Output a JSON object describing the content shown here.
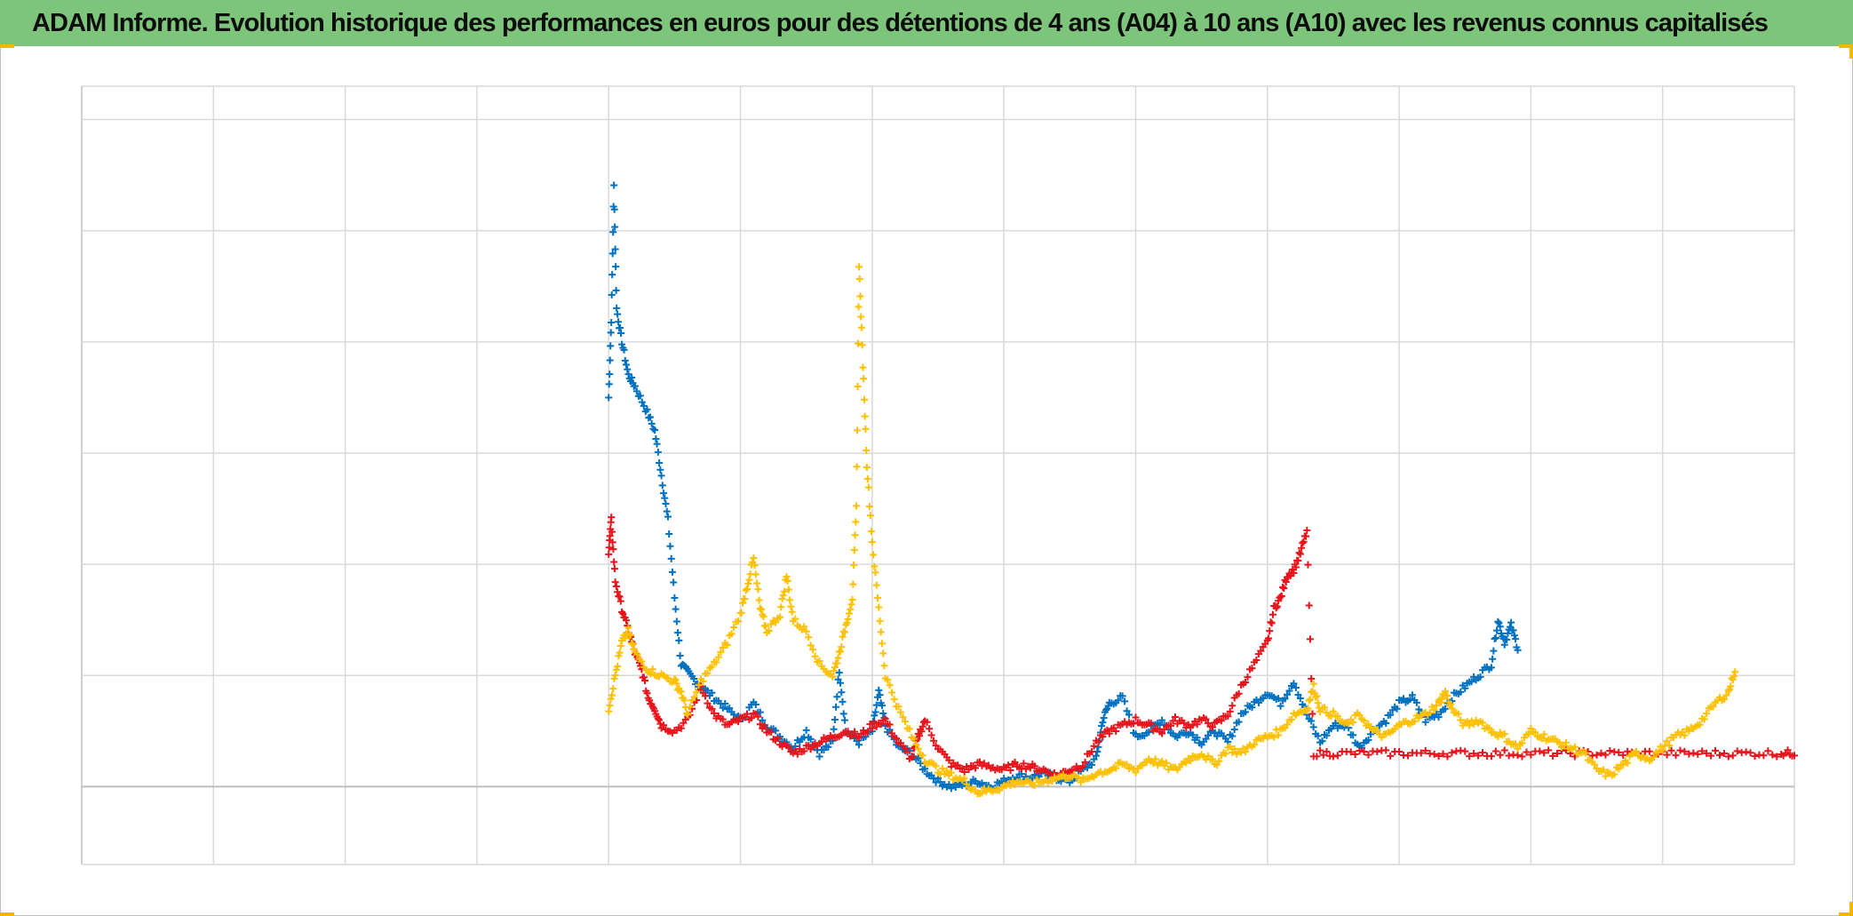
{
  "title": "ADAM Informe. Evolution historique des performances en euros pour des détentions de 4 ans (A04) à 10 ans (A10) avec les revenus connus capitalisés",
  "colors": {
    "header_bg": "#7dc57a",
    "corner_accent": "#f2b800",
    "grid": "#d9d9d9",
    "axis": "#bfbfbf"
  },
  "chart_data": {
    "type": "scatter",
    "marker": "plus",
    "title": "ADAM Informe. Evolution historique des performances en euros pour des détentions de 4 ans (A04) à 10 ans (A10) avec les revenus connus capitalisés",
    "xlabel": "",
    "ylabel": "",
    "tick_labels_visible": false,
    "legend_visible": false,
    "grid": true,
    "x_range": [
      0,
      13
    ],
    "y_range": [
      -0.7,
      6.3
    ],
    "x_gridlines": 13,
    "y_gridlines": [
      0,
      1,
      2,
      3,
      4,
      5,
      6
    ],
    "series": [
      {
        "color": "#0070c0",
        "points": [
          [
            4.0,
            3.5
          ],
          [
            4.02,
            4.2
          ],
          [
            4.04,
            5.4
          ],
          [
            4.06,
            4.3
          ],
          [
            4.1,
            4.0
          ],
          [
            4.15,
            3.7
          ],
          [
            4.2,
            3.6
          ],
          [
            4.28,
            3.4
          ],
          [
            4.35,
            3.2
          ],
          [
            4.4,
            2.8
          ],
          [
            4.45,
            2.4
          ],
          [
            4.5,
            1.7
          ],
          [
            4.55,
            1.1
          ],
          [
            4.62,
            1.0
          ],
          [
            4.7,
            0.9
          ],
          [
            4.8,
            0.8
          ],
          [
            4.9,
            0.7
          ],
          [
            5.0,
            0.6
          ],
          [
            5.1,
            0.75
          ],
          [
            5.2,
            0.55
          ],
          [
            5.3,
            0.45
          ],
          [
            5.4,
            0.35
          ],
          [
            5.5,
            0.5
          ],
          [
            5.6,
            0.3
          ],
          [
            5.7,
            0.4
          ],
          [
            5.75,
            1.05
          ],
          [
            5.8,
            0.5
          ],
          [
            5.9,
            0.4
          ],
          [
            6.0,
            0.5
          ],
          [
            6.05,
            0.85
          ],
          [
            6.1,
            0.55
          ],
          [
            6.2,
            0.35
          ],
          [
            6.3,
            0.3
          ],
          [
            6.4,
            0.15
          ],
          [
            6.5,
            0.05
          ],
          [
            6.6,
            0.0
          ],
          [
            6.7,
            0.02
          ],
          [
            6.8,
            0.05
          ],
          [
            6.9,
            0.0
          ],
          [
            7.0,
            0.05
          ],
          [
            7.1,
            0.1
          ],
          [
            7.2,
            0.08
          ],
          [
            7.3,
            0.12
          ],
          [
            7.4,
            0.08
          ],
          [
            7.5,
            0.05
          ],
          [
            7.6,
            0.15
          ],
          [
            7.7,
            0.25
          ],
          [
            7.75,
            0.6
          ],
          [
            7.8,
            0.75
          ],
          [
            7.9,
            0.8
          ],
          [
            8.0,
            0.45
          ],
          [
            8.1,
            0.5
          ],
          [
            8.2,
            0.6
          ],
          [
            8.3,
            0.45
          ],
          [
            8.4,
            0.5
          ],
          [
            8.5,
            0.4
          ],
          [
            8.6,
            0.5
          ],
          [
            8.7,
            0.4
          ],
          [
            8.8,
            0.65
          ],
          [
            8.9,
            0.75
          ],
          [
            9.0,
            0.85
          ],
          [
            9.1,
            0.75
          ],
          [
            9.2,
            0.95
          ],
          [
            9.3,
            0.65
          ],
          [
            9.4,
            0.4
          ],
          [
            9.5,
            0.55
          ],
          [
            9.6,
            0.55
          ],
          [
            9.7,
            0.35
          ],
          [
            9.8,
            0.5
          ],
          [
            9.9,
            0.6
          ],
          [
            10.0,
            0.75
          ],
          [
            10.1,
            0.8
          ],
          [
            10.2,
            0.6
          ],
          [
            10.3,
            0.65
          ],
          [
            10.4,
            0.8
          ],
          [
            10.5,
            0.9
          ],
          [
            10.6,
            1.0
          ],
          [
            10.7,
            1.1
          ],
          [
            10.75,
            1.5
          ],
          [
            10.8,
            1.3
          ],
          [
            10.85,
            1.45
          ],
          [
            10.9,
            1.25
          ]
        ]
      },
      {
        "color": "#e8141b",
        "points": [
          [
            4.0,
            2.1
          ],
          [
            4.02,
            2.4
          ],
          [
            4.05,
            1.85
          ],
          [
            4.1,
            1.6
          ],
          [
            4.15,
            1.4
          ],
          [
            4.2,
            1.2
          ],
          [
            4.25,
            1.05
          ],
          [
            4.3,
            0.8
          ],
          [
            4.35,
            0.7
          ],
          [
            4.4,
            0.55
          ],
          [
            4.5,
            0.5
          ],
          [
            4.6,
            0.6
          ],
          [
            4.7,
            0.9
          ],
          [
            4.8,
            0.65
          ],
          [
            4.9,
            0.55
          ],
          [
            5.0,
            0.6
          ],
          [
            5.1,
            0.65
          ],
          [
            5.2,
            0.5
          ],
          [
            5.3,
            0.4
          ],
          [
            5.4,
            0.3
          ],
          [
            5.5,
            0.35
          ],
          [
            5.6,
            0.4
          ],
          [
            5.7,
            0.45
          ],
          [
            5.8,
            0.5
          ],
          [
            5.9,
            0.45
          ],
          [
            6.0,
            0.55
          ],
          [
            6.1,
            0.6
          ],
          [
            6.2,
            0.4
          ],
          [
            6.3,
            0.25
          ],
          [
            6.35,
            0.45
          ],
          [
            6.4,
            0.6
          ],
          [
            6.5,
            0.35
          ],
          [
            6.6,
            0.2
          ],
          [
            6.7,
            0.15
          ],
          [
            6.8,
            0.2
          ],
          [
            6.9,
            0.18
          ],
          [
            7.0,
            0.15
          ],
          [
            7.1,
            0.2
          ],
          [
            7.2,
            0.18
          ],
          [
            7.3,
            0.15
          ],
          [
            7.4,
            0.1
          ],
          [
            7.5,
            0.15
          ],
          [
            7.6,
            0.2
          ],
          [
            7.7,
            0.4
          ],
          [
            7.8,
            0.5
          ],
          [
            7.9,
            0.55
          ],
          [
            8.0,
            0.6
          ],
          [
            8.1,
            0.55
          ],
          [
            8.2,
            0.5
          ],
          [
            8.3,
            0.6
          ],
          [
            8.4,
            0.55
          ],
          [
            8.5,
            0.6
          ],
          [
            8.6,
            0.55
          ],
          [
            8.7,
            0.65
          ],
          [
            8.8,
            0.9
          ],
          [
            8.9,
            1.1
          ],
          [
            9.0,
            1.3
          ],
          [
            9.05,
            1.6
          ],
          [
            9.1,
            1.7
          ],
          [
            9.15,
            1.9
          ],
          [
            9.2,
            1.95
          ],
          [
            9.25,
            2.1
          ],
          [
            9.3,
            2.3
          ],
          [
            9.35,
            0.3
          ],
          [
            9.5,
            0.3
          ],
          [
            9.7,
            0.3
          ],
          [
            9.9,
            0.3
          ],
          [
            10.1,
            0.3
          ],
          [
            10.3,
            0.3
          ],
          [
            10.5,
            0.3
          ],
          [
            10.7,
            0.3
          ],
          [
            10.9,
            0.3
          ],
          [
            11.1,
            0.3
          ],
          [
            11.3,
            0.3
          ],
          [
            11.5,
            0.3
          ],
          [
            11.7,
            0.3
          ],
          [
            11.9,
            0.3
          ],
          [
            12.1,
            0.3
          ],
          [
            12.3,
            0.3
          ],
          [
            12.5,
            0.3
          ],
          [
            12.7,
            0.3
          ],
          [
            12.9,
            0.3
          ],
          [
            13.0,
            0.3
          ]
        ]
      },
      {
        "color": "#ffc000",
        "points": [
          [
            4.0,
            0.7
          ],
          [
            4.05,
            1.0
          ],
          [
            4.1,
            1.3
          ],
          [
            4.15,
            1.4
          ],
          [
            4.2,
            1.2
          ],
          [
            4.3,
            1.05
          ],
          [
            4.4,
            1.0
          ],
          [
            4.5,
            0.95
          ],
          [
            4.55,
            0.85
          ],
          [
            4.6,
            0.65
          ],
          [
            4.7,
            0.95
          ],
          [
            4.8,
            1.1
          ],
          [
            4.9,
            1.3
          ],
          [
            5.0,
            1.55
          ],
          [
            5.05,
            1.8
          ],
          [
            5.1,
            2.05
          ],
          [
            5.15,
            1.6
          ],
          [
            5.2,
            1.4
          ],
          [
            5.3,
            1.55
          ],
          [
            5.35,
            1.9
          ],
          [
            5.4,
            1.5
          ],
          [
            5.5,
            1.4
          ],
          [
            5.6,
            1.1
          ],
          [
            5.7,
            1.0
          ],
          [
            5.75,
            1.2
          ],
          [
            5.8,
            1.45
          ],
          [
            5.85,
            1.7
          ],
          [
            5.88,
            2.5
          ],
          [
            5.9,
            4.7
          ],
          [
            5.93,
            3.8
          ],
          [
            5.96,
            2.9
          ],
          [
            6.0,
            2.2
          ],
          [
            6.05,
            1.6
          ],
          [
            6.1,
            1.0
          ],
          [
            6.2,
            0.7
          ],
          [
            6.3,
            0.45
          ],
          [
            6.4,
            0.25
          ],
          [
            6.5,
            0.15
          ],
          [
            6.6,
            0.1
          ],
          [
            6.7,
            0.05
          ],
          [
            6.8,
            -0.05
          ],
          [
            6.9,
            -0.03
          ],
          [
            7.0,
            0.0
          ],
          [
            7.1,
            0.05
          ],
          [
            7.2,
            0.02
          ],
          [
            7.3,
            0.05
          ],
          [
            7.4,
            0.08
          ],
          [
            7.5,
            0.1
          ],
          [
            7.6,
            0.05
          ],
          [
            7.7,
            0.12
          ],
          [
            7.8,
            0.15
          ],
          [
            7.9,
            0.2
          ],
          [
            8.0,
            0.15
          ],
          [
            8.1,
            0.25
          ],
          [
            8.2,
            0.2
          ],
          [
            8.3,
            0.15
          ],
          [
            8.4,
            0.25
          ],
          [
            8.5,
            0.3
          ],
          [
            8.6,
            0.2
          ],
          [
            8.7,
            0.35
          ],
          [
            8.8,
            0.3
          ],
          [
            8.9,
            0.4
          ],
          [
            9.0,
            0.45
          ],
          [
            9.1,
            0.5
          ],
          [
            9.2,
            0.65
          ],
          [
            9.3,
            0.7
          ],
          [
            9.35,
            0.9
          ],
          [
            9.4,
            0.7
          ],
          [
            9.5,
            0.65
          ],
          [
            9.6,
            0.55
          ],
          [
            9.7,
            0.65
          ],
          [
            9.8,
            0.5
          ],
          [
            9.9,
            0.45
          ],
          [
            10.0,
            0.55
          ],
          [
            10.1,
            0.6
          ],
          [
            10.2,
            0.65
          ],
          [
            10.3,
            0.75
          ],
          [
            10.35,
            0.85
          ],
          [
            10.4,
            0.7
          ],
          [
            10.5,
            0.55
          ],
          [
            10.6,
            0.6
          ],
          [
            10.7,
            0.5
          ],
          [
            10.8,
            0.45
          ],
          [
            10.9,
            0.35
          ],
          [
            11.0,
            0.5
          ],
          [
            11.1,
            0.45
          ],
          [
            11.2,
            0.4
          ],
          [
            11.3,
            0.35
          ],
          [
            11.4,
            0.3
          ],
          [
            11.5,
            0.15
          ],
          [
            11.6,
            0.1
          ],
          [
            11.7,
            0.2
          ],
          [
            11.8,
            0.3
          ],
          [
            11.9,
            0.25
          ],
          [
            12.0,
            0.35
          ],
          [
            12.1,
            0.45
          ],
          [
            12.2,
            0.5
          ],
          [
            12.3,
            0.6
          ],
          [
            12.4,
            0.75
          ],
          [
            12.5,
            0.85
          ],
          [
            12.55,
            1.05
          ]
        ]
      }
    ]
  }
}
